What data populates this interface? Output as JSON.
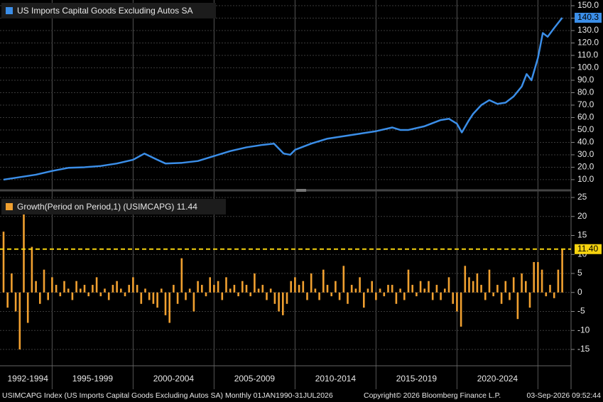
{
  "chart_data": [
    {
      "type": "line",
      "series": [
        {
          "name": "US Imports Capital Goods Excluding Autos SA",
          "color": "#3b8ee8",
          "x": [
            1992,
            1993,
            1994,
            1995,
            1996,
            1997,
            1998,
            1999,
            2000,
            2000.7,
            2001.5,
            2002,
            2003,
            2004,
            2005,
            2006,
            2007,
            2008,
            2008.7,
            2009.3,
            2009.7,
            2010,
            2011,
            2012,
            2013,
            2014,
            2015,
            2016,
            2016.5,
            2017,
            2018,
            2019,
            2019.5,
            2020,
            2020.3,
            2020.7,
            2021,
            2021.5,
            2022,
            2022.5,
            2023,
            2023.5,
            2024,
            2024.3,
            2024.6,
            2025,
            2025.3,
            2025.6,
            2026,
            2026.5
          ],
          "values": [
            10,
            12,
            14,
            17,
            19.5,
            20,
            21,
            23,
            26,
            31,
            26,
            23,
            23.5,
            25,
            29,
            33,
            36,
            38,
            39,
            31,
            30,
            34,
            39,
            43,
            45,
            47,
            49,
            52,
            50,
            50,
            53,
            58,
            59,
            55,
            48,
            57,
            63,
            70,
            74,
            71,
            72,
            77,
            85,
            95,
            90,
            108,
            128,
            125,
            132,
            140.3
          ]
        }
      ],
      "last_value": 140.3,
      "xlim": [
        1992,
        2027
      ],
      "ylim": [
        3.1,
        154.6
      ],
      "yticks": [
        {
          "value": 10,
          "label": "10.0"
        },
        {
          "value": 20,
          "label": "20.0"
        },
        {
          "value": 30,
          "label": "30.0"
        },
        {
          "value": 40,
          "label": "40.0"
        },
        {
          "value": 50,
          "label": "50.0"
        },
        {
          "value": 60,
          "label": "60.0"
        },
        {
          "value": 70,
          "label": "70.0"
        },
        {
          "value": 80,
          "label": "80.0"
        },
        {
          "value": 90,
          "label": "90.0"
        },
        {
          "value": 100,
          "label": "100.0"
        },
        {
          "value": 110,
          "label": "110.0"
        },
        {
          "value": 120,
          "label": "120.0"
        },
        {
          "value": 130,
          "label": "130.0"
        },
        {
          "value": 140,
          "label": "140.0"
        },
        {
          "value": 150,
          "label": "150.0"
        }
      ],
      "grid": true
    },
    {
      "type": "bar",
      "series": [
        {
          "name": "Growth(Period on Period,1) (USIMCAPG) 11.44",
          "color": "#f0a030",
          "x": [
            1992,
            1992.25,
            1992.5,
            1992.75,
            1993,
            1993.25,
            1993.5,
            1993.75,
            1994,
            1994.25,
            1994.5,
            1994.75,
            1995,
            1995.25,
            1995.5,
            1995.75,
            1996,
            1996.25,
            1996.5,
            1996.75,
            1997,
            1997.25,
            1997.5,
            1997.75,
            1998,
            1998.25,
            1998.5,
            1998.75,
            1999,
            1999.25,
            1999.5,
            1999.75,
            2000,
            2000.25,
            2000.5,
            2000.75,
            2001,
            2001.25,
            2001.5,
            2001.75,
            2002,
            2002.25,
            2002.5,
            2002.75,
            2003,
            2003.25,
            2003.5,
            2003.75,
            2004,
            2004.25,
            2004.5,
            2004.75,
            2005,
            2005.25,
            2005.5,
            2005.75,
            2006,
            2006.25,
            2006.5,
            2006.75,
            2007,
            2007.25,
            2007.5,
            2007.75,
            2008,
            2008.25,
            2008.5,
            2008.75,
            2009,
            2009.25,
            2009.5,
            2009.75,
            2010,
            2010.25,
            2010.5,
            2010.75,
            2011,
            2011.25,
            2011.5,
            2011.75,
            2012,
            2012.25,
            2012.5,
            2012.75,
            2013,
            2013.25,
            2013.5,
            2013.75,
            2014,
            2014.25,
            2014.5,
            2014.75,
            2015,
            2015.25,
            2015.5,
            2015.75,
            2016,
            2016.25,
            2016.5,
            2016.75,
            2017,
            2017.25,
            2017.5,
            2017.75,
            2018,
            2018.25,
            2018.5,
            2018.75,
            2019,
            2019.25,
            2019.5,
            2019.75,
            2020,
            2020.25,
            2020.5,
            2020.75,
            2021,
            2021.25,
            2021.5,
            2021.75,
            2022,
            2022.25,
            2022.5,
            2022.75,
            2023,
            2023.25,
            2023.5,
            2023.75,
            2024,
            2024.25,
            2024.5,
            2024.75,
            2025,
            2025.25,
            2025.5,
            2025.75,
            2026,
            2026.25,
            2026.5
          ],
          "values": [
            16,
            -4,
            5,
            -5,
            -15,
            22,
            -8,
            12,
            3,
            -3,
            6,
            -2,
            4,
            2,
            -1,
            3,
            1,
            -2,
            3,
            1,
            2,
            -1,
            2,
            4,
            -1,
            1,
            -2,
            2,
            3,
            1,
            -1,
            2,
            4,
            2,
            -3,
            1,
            -2,
            -3,
            -4,
            1,
            -6,
            -8,
            2,
            -3,
            9,
            -2,
            1,
            -5,
            3,
            2,
            -1,
            4,
            2,
            3,
            -2,
            4,
            1,
            2,
            -1,
            3,
            2,
            -1,
            5,
            1,
            2,
            -2,
            1,
            -3,
            -5,
            -6,
            -3,
            3,
            4,
            2,
            3,
            -2,
            5,
            1,
            -2,
            6,
            2,
            -1,
            3,
            -2,
            7,
            -3,
            2,
            1,
            4,
            -4,
            1,
            3,
            -2,
            1,
            -1,
            2,
            2,
            -3,
            1,
            -2,
            6,
            2,
            -1,
            3,
            1,
            3,
            -2,
            2,
            -2,
            1,
            4,
            -3,
            -5,
            -9,
            7,
            4,
            3,
            5,
            2,
            -2,
            6,
            -1,
            2,
            -3,
            3,
            -2,
            4,
            -7,
            5,
            3,
            -4,
            8,
            8,
            6,
            -1,
            2,
            -1.5,
            6,
            11.44
          ]
        }
      ],
      "ref_line": {
        "value": 11.4,
        "label": "11.40"
      },
      "xlim": [
        1992,
        2027
      ],
      "xticks": [
        1995,
        2000,
        2005,
        2010,
        2015,
        2020,
        2025
      ],
      "xtick_labels": [
        "1992-1994",
        "1995-1999",
        "2000-2004",
        "2005-2009",
        "2010-2014",
        "2015-2019",
        "2020-2024"
      ],
      "ylim": [
        -19.3,
        26.5
      ],
      "yticks": [
        -15,
        -10,
        -5,
        0,
        5,
        10,
        15,
        20,
        25
      ],
      "grid": true
    }
  ],
  "footer": {
    "source": "USIMCAPG Index (US Imports Capital Goods Excluding Autos SA) Monthly 01JAN1990-31JUL2026",
    "copyright": "Copyright© 2026 Bloomberg Finance L.P.",
    "timestamp": "03-Sep-2026 09:52:44"
  }
}
